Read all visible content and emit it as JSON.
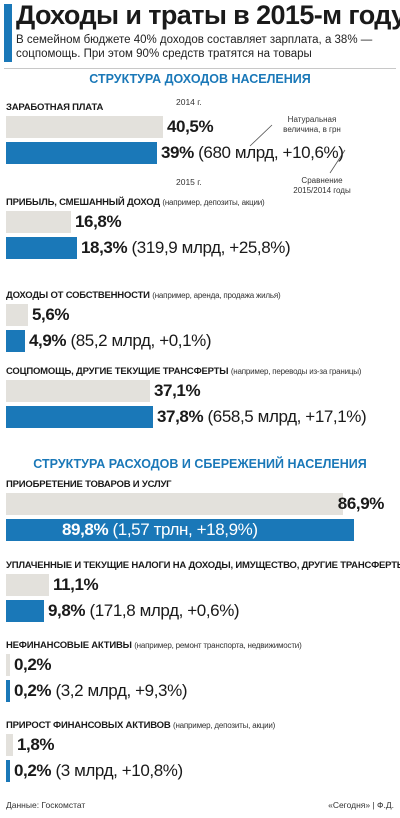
{
  "header": {
    "title": "Доходы и траты в 2015-м году",
    "subtitle": "В семейном бюджете 40% доходов составляет зарплата, а 38% — соцпомощь. При этом 90% средств тратятся на товары"
  },
  "legend": {
    "label_2014": "2014 г.",
    "label_2015": "2015 г.",
    "natural_value": "Натуральная величина, в грн",
    "comparison": "Сравнение 2015/2014 годы"
  },
  "footer": {
    "source": "Данные: Госкомстат",
    "credit": "«Сегодня» | Ф.Д."
  },
  "colors": {
    "bar_2014": "#e3e1dc",
    "bar_2015": "#1a78b8",
    "title_accent": "#1a78b8"
  },
  "chart_data": [
    {
      "type": "bar",
      "orientation": "horizontal",
      "title": "СТРУКТУРА ДОХОДОВ НАСЕЛЕНИЯ",
      "categories": [
        {
          "label": "ЗАРАБОТНАЯ ПЛАТА",
          "note": ""
        },
        {
          "label": "ПРИБЫЛЬ, СМЕШАННЫЙ ДОХОД",
          "note": "(например, депозиты, акции)"
        },
        {
          "label": "ДОХОДЫ ОТ СОБСТВЕННОСТИ",
          "note": "(например, аренда, продажа жилья)"
        },
        {
          "label": "СОЦПОМОЩЬ, ДРУГИЕ ТЕКУЩИЕ ТРАНСФЕРТЫ",
          "note": "(например, переводы из-за границы)"
        }
      ],
      "series": [
        {
          "name": "2014 г.",
          "values": [
            40.5,
            16.8,
            5.6,
            37.1
          ],
          "labels": [
            "40,5%",
            "16,8%",
            "5,6%",
            "37,1%"
          ]
        },
        {
          "name": "2015 г.",
          "values": [
            39.0,
            18.3,
            4.9,
            37.8
          ],
          "labels": [
            "39%",
            "18,3%",
            "4,9%",
            "37,8%"
          ],
          "details": [
            "(680 млрд, +10,6%)",
            "(319,9 млрд, +25,8%)",
            "(85,2 млрд, +0,1%)",
            "(658,5 млрд, +17,1%)"
          ]
        }
      ],
      "unit": "%"
    },
    {
      "type": "bar",
      "orientation": "horizontal",
      "title": "СТРУКТУРА РАСХОДОВ И СБЕРЕЖЕНИЙ НАСЕЛЕНИЯ",
      "categories": [
        {
          "label": "ПРИОБРЕТЕНИЕ ТОВАРОВ И УСЛУГ",
          "note": ""
        },
        {
          "label": "УПЛАЧЕННЫЕ И ТЕКУЩИЕ НАЛОГИ НА ДОХОДЫ, ИМУЩЕСТВО, ДРУГИЕ ТРАНСФЕРТЫ",
          "note": ""
        },
        {
          "label": "НЕФИНАНСОВЫЕ АКТИВЫ",
          "note": "(например, ремонт транспорта, недвижимости)"
        },
        {
          "label": "ПРИРОСТ ФИНАНСОВЫХ АКТИВОВ",
          "note": "(например, депозиты, акции)"
        }
      ],
      "series": [
        {
          "name": "2014 г.",
          "values": [
            86.9,
            11.1,
            0.2,
            1.8
          ],
          "labels": [
            "86,9%",
            "11,1%",
            "0,2%",
            "1,8%"
          ]
        },
        {
          "name": "2015 г.",
          "values": [
            89.8,
            9.8,
            0.2,
            0.2
          ],
          "labels": [
            "89,8%",
            "9,8%",
            "0,2%",
            "0,2%"
          ],
          "details": [
            "(1,57 трлн, +18,9%)",
            "(171,8 млрд, +0,6%)",
            "(3,2 млрд, +9,3%)",
            "(3 млрд, +10,8%)"
          ]
        }
      ],
      "unit": "%"
    }
  ]
}
